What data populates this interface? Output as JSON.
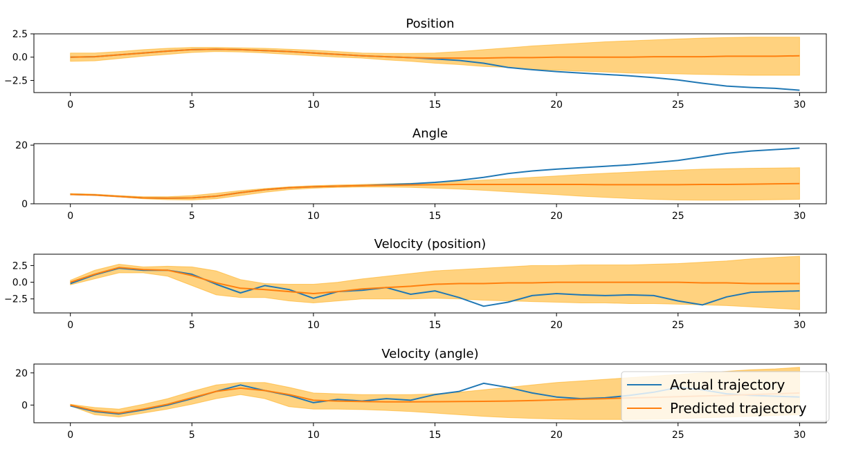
{
  "colors": {
    "actual": "#1f77b4",
    "predicted": "#ff7f0e",
    "band": "#ffa500"
  },
  "legend": {
    "placement": "bottom-right of last panel",
    "entries": [
      "Actual trajectory",
      "Predicted trajectory"
    ]
  },
  "chart_data": [
    {
      "type": "line",
      "title": "Position",
      "xlabel": "",
      "ylabel": "",
      "xlim": [
        -1.5,
        31.1
      ],
      "ylim": [
        -3.8,
        2.5
      ],
      "xticks": [
        0,
        5,
        10,
        15,
        20,
        25,
        30
      ],
      "yticks": [
        2.5,
        0.0,
        -2.5
      ],
      "ytick_labels": [
        "2.5",
        "0.0",
        "−2.5"
      ],
      "grid": false,
      "x": [
        0,
        1,
        2,
        3,
        4,
        5,
        6,
        7,
        8,
        9,
        10,
        11,
        12,
        13,
        14,
        15,
        16,
        17,
        18,
        19,
        20,
        21,
        22,
        23,
        24,
        25,
        26,
        27,
        28,
        29,
        30
      ],
      "series": [
        {
          "name": "Actual trajectory",
          "values": [
            0.0,
            0.05,
            0.25,
            0.45,
            0.65,
            0.8,
            0.85,
            0.8,
            0.7,
            0.6,
            0.45,
            0.3,
            0.15,
            0.05,
            -0.05,
            -0.2,
            -0.35,
            -0.65,
            -1.1,
            -1.35,
            -1.55,
            -1.7,
            -1.85,
            -2.0,
            -2.2,
            -2.45,
            -2.8,
            -3.1,
            -3.25,
            -3.35,
            -3.55
          ]
        },
        {
          "name": "Predicted trajectory",
          "values": [
            0.0,
            0.05,
            0.25,
            0.45,
            0.65,
            0.8,
            0.85,
            0.8,
            0.7,
            0.6,
            0.45,
            0.3,
            0.15,
            0.05,
            -0.05,
            -0.1,
            -0.1,
            -0.1,
            -0.05,
            -0.05,
            0.0,
            0.0,
            0.0,
            0.0,
            0.05,
            0.05,
            0.05,
            0.1,
            0.1,
            0.1,
            0.15
          ]
        }
      ],
      "band": {
        "upper": [
          0.45,
          0.45,
          0.6,
          0.8,
          0.95,
          1.05,
          1.05,
          1.0,
          0.95,
          0.85,
          0.75,
          0.6,
          0.45,
          0.4,
          0.4,
          0.45,
          0.6,
          0.8,
          1.0,
          1.2,
          1.35,
          1.5,
          1.65,
          1.75,
          1.85,
          1.95,
          2.05,
          2.1,
          2.15,
          2.15,
          2.15
        ],
        "lower": [
          -0.45,
          -0.4,
          -0.15,
          0.1,
          0.3,
          0.5,
          0.6,
          0.55,
          0.45,
          0.3,
          0.15,
          0.0,
          -0.1,
          -0.3,
          -0.45,
          -0.65,
          -0.8,
          -1.0,
          -1.1,
          -1.3,
          -1.4,
          -1.5,
          -1.6,
          -1.7,
          -1.75,
          -1.8,
          -1.85,
          -1.9,
          -1.95,
          -1.95,
          -1.95
        ]
      }
    },
    {
      "type": "line",
      "title": "Angle",
      "xlabel": "",
      "ylabel": "",
      "xlim": [
        -1.5,
        31.1
      ],
      "ylim": [
        0,
        20.5
      ],
      "xticks": [
        0,
        5,
        10,
        15,
        20,
        25,
        30
      ],
      "yticks": [
        20,
        0
      ],
      "ytick_labels": [
        "20",
        "0"
      ],
      "grid": false,
      "x": [
        0,
        1,
        2,
        3,
        4,
        5,
        6,
        7,
        8,
        9,
        10,
        11,
        12,
        13,
        14,
        15,
        16,
        17,
        18,
        19,
        20,
        21,
        22,
        23,
        24,
        25,
        26,
        27,
        28,
        29,
        30
      ],
      "series": [
        {
          "name": "Actual trajectory",
          "values": [
            3.2,
            3.0,
            2.5,
            2.0,
            1.9,
            2.0,
            2.6,
            3.8,
            4.8,
            5.5,
            5.8,
            6.0,
            6.2,
            6.5,
            6.8,
            7.3,
            8.0,
            9.0,
            10.3,
            11.2,
            11.8,
            12.3,
            12.8,
            13.3,
            14.0,
            14.8,
            16.0,
            17.2,
            18.0,
            18.5,
            19.0
          ]
        },
        {
          "name": "Predicted trajectory",
          "values": [
            3.2,
            3.0,
            2.5,
            2.0,
            1.9,
            2.0,
            2.6,
            3.8,
            4.8,
            5.5,
            5.8,
            6.0,
            6.2,
            6.3,
            6.4,
            6.5,
            6.6,
            6.6,
            6.6,
            6.6,
            6.6,
            6.6,
            6.5,
            6.5,
            6.5,
            6.5,
            6.6,
            6.6,
            6.7,
            6.8,
            6.9
          ]
        }
      ],
      "band": {
        "upper": [
          3.5,
          3.3,
          2.8,
          2.4,
          2.4,
          2.8,
          3.6,
          4.5,
          5.2,
          5.8,
          6.2,
          6.4,
          6.6,
          6.8,
          7.0,
          7.3,
          7.7,
          8.1,
          8.5,
          9.0,
          9.5,
          10.0,
          10.4,
          10.8,
          11.2,
          11.5,
          11.8,
          12.0,
          12.1,
          12.2,
          12.3
        ],
        "lower": [
          3.0,
          2.8,
          2.3,
          1.7,
          1.4,
          1.3,
          1.7,
          2.8,
          3.9,
          4.8,
          5.3,
          5.6,
          5.7,
          5.7,
          5.6,
          5.3,
          5.0,
          4.6,
          4.1,
          3.6,
          3.1,
          2.6,
          2.2,
          1.8,
          1.5,
          1.3,
          1.2,
          1.2,
          1.3,
          1.4,
          1.5
        ]
      }
    },
    {
      "type": "line",
      "title": "Velocity (position)",
      "xlabel": "",
      "ylabel": "",
      "xlim": [
        -1.5,
        31.1
      ],
      "ylim": [
        -4.6,
        4.2
      ],
      "xticks": [
        0,
        5,
        10,
        15,
        20,
        25,
        30
      ],
      "yticks": [
        2.5,
        0.0,
        -2.5
      ],
      "ytick_labels": [
        "2.5",
        "0.0",
        "−2.5"
      ],
      "grid": false,
      "x": [
        0,
        1,
        2,
        3,
        4,
        5,
        6,
        7,
        8,
        9,
        10,
        11,
        12,
        13,
        14,
        15,
        16,
        17,
        18,
        19,
        20,
        21,
        22,
        23,
        24,
        25,
        26,
        27,
        28,
        29,
        30
      ],
      "series": [
        {
          "name": "Actual trajectory",
          "values": [
            -0.2,
            1.1,
            2.1,
            1.8,
            1.8,
            1.2,
            -0.3,
            -1.6,
            -0.5,
            -1.1,
            -2.4,
            -1.4,
            -1.2,
            -0.8,
            -1.8,
            -1.3,
            -2.3,
            -3.6,
            -3.0,
            -2.0,
            -1.7,
            -1.9,
            -2.0,
            -1.9,
            -2.0,
            -2.8,
            -3.4,
            -2.2,
            -1.5,
            -1.4,
            -1.3
          ]
        },
        {
          "name": "Predicted trajectory",
          "values": [
            0.0,
            1.2,
            2.2,
            1.9,
            1.8,
            1.0,
            -0.1,
            -0.9,
            -1.1,
            -1.4,
            -1.7,
            -1.4,
            -1.0,
            -0.8,
            -0.6,
            -0.3,
            -0.2,
            -0.2,
            -0.1,
            -0.1,
            0.0,
            0.0,
            0.0,
            0.0,
            0.0,
            0.0,
            -0.1,
            -0.1,
            -0.2,
            -0.2,
            -0.2
          ]
        }
      ],
      "band": {
        "upper": [
          0.3,
          1.8,
          2.7,
          2.3,
          2.4,
          2.3,
          1.7,
          0.4,
          -0.2,
          -0.3,
          -0.3,
          0.0,
          0.5,
          0.9,
          1.3,
          1.7,
          1.9,
          2.1,
          2.3,
          2.5,
          2.5,
          2.6,
          2.6,
          2.6,
          2.7,
          2.8,
          3.0,
          3.2,
          3.5,
          3.7,
          3.9
        ],
        "lower": [
          -0.4,
          0.5,
          1.4,
          1.4,
          0.9,
          -0.5,
          -1.9,
          -2.3,
          -2.3,
          -2.8,
          -3.1,
          -2.8,
          -2.5,
          -2.5,
          -2.5,
          -2.4,
          -2.5,
          -2.7,
          -2.8,
          -2.9,
          -3.0,
          -3.1,
          -3.1,
          -3.2,
          -3.2,
          -3.3,
          -3.4,
          -3.5,
          -3.7,
          -3.9,
          -4.1
        ]
      }
    },
    {
      "type": "line",
      "title": "Velocity (angle)",
      "xlabel": "",
      "ylabel": "",
      "xlim": [
        -1.5,
        31.1
      ],
      "ylim": [
        -11,
        25.5
      ],
      "xticks": [
        0,
        5,
        10,
        15,
        20,
        25,
        30
      ],
      "yticks": [
        20,
        0
      ],
      "ytick_labels": [
        "20",
        "0"
      ],
      "grid": false,
      "x": [
        0,
        1,
        2,
        3,
        4,
        5,
        6,
        7,
        8,
        9,
        10,
        11,
        12,
        13,
        14,
        15,
        16,
        17,
        18,
        19,
        20,
        21,
        22,
        23,
        24,
        25,
        26,
        27,
        28,
        29,
        30
      ],
      "series": [
        {
          "name": "Actual trajectory",
          "values": [
            -0.5,
            -4.0,
            -5.5,
            -3.0,
            0.0,
            4.0,
            8.5,
            12.5,
            9.0,
            6.0,
            1.5,
            3.5,
            2.5,
            4.0,
            3.0,
            6.5,
            8.5,
            13.5,
            11.0,
            7.5,
            5.0,
            4.0,
            4.5,
            6.0,
            8.0,
            11.0,
            9.5,
            7.0,
            6.0,
            5.5,
            5.0
          ]
        },
        {
          "name": "Predicted trajectory",
          "values": [
            0.0,
            -3.5,
            -5.0,
            -2.5,
            0.5,
            4.5,
            8.5,
            10.5,
            9.0,
            6.5,
            3.0,
            2.5,
            2.2,
            2.0,
            2.0,
            2.1,
            2.2,
            2.3,
            2.5,
            2.8,
            3.2,
            3.6,
            4.0,
            4.4,
            4.8,
            5.2,
            5.6,
            6.0,
            6.5,
            7.0,
            7.5
          ]
        }
      ],
      "band": {
        "upper": [
          0.5,
          -1.5,
          -2.5,
          0.5,
          4.0,
          8.5,
          12.5,
          14.0,
          14.0,
          11.0,
          7.5,
          7.0,
          6.5,
          6.5,
          6.5,
          7.0,
          8.0,
          9.5,
          11.0,
          12.5,
          14.0,
          15.0,
          16.0,
          17.0,
          18.0,
          19.0,
          20.0,
          21.0,
          22.0,
          22.5,
          23.5
        ],
        "lower": [
          -0.5,
          -6.0,
          -7.5,
          -5.0,
          -2.5,
          0.5,
          4.0,
          6.5,
          4.0,
          -1.0,
          -2.5,
          -2.5,
          -2.8,
          -3.3,
          -4.0,
          -5.0,
          -6.0,
          -7.0,
          -7.8,
          -8.3,
          -8.7,
          -9.0,
          -9.0,
          -9.0,
          -8.8,
          -8.5,
          -8.0,
          -7.5,
          -7.0,
          -6.5,
          -6.0
        ]
      }
    }
  ]
}
